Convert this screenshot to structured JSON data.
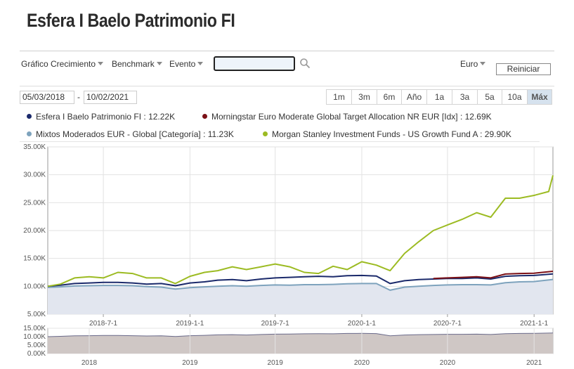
{
  "page": {
    "title": "Esfera I Baelo Patrimonio FI"
  },
  "toolbar": {
    "growth_chart": "Gráfico Crecimiento",
    "benchmark": "Benchmark",
    "event": "Evento",
    "search_value": "",
    "currency": "Euro",
    "reset": "Reiniciar"
  },
  "date_range": {
    "start": "05/03/2018",
    "separator": "-",
    "end": "10/02/2021"
  },
  "ranges": [
    "1m",
    "3m",
    "6m",
    "Año",
    "1a",
    "3a",
    "5a",
    "10a",
    "Máx"
  ],
  "active_range": "Máx",
  "legend": [
    {
      "label": "Esfera I Baelo Patrimonio FI : 12.22K",
      "color": "#1b2a6b"
    },
    {
      "label": "Morningstar Euro Moderate Global Target Allocation NR EUR [Idx] : 12.69K",
      "color": "#7b1016"
    },
    {
      "label": "Mixtos Moderados EUR - Global [Categoría] : 11.23K",
      "color": "#7ea3bd"
    },
    {
      "label": "Morgan Stanley Investment Funds - US Growth Fund A : 29.90K",
      "color": "#9cbb22"
    }
  ],
  "chart_data": {
    "type": "line",
    "x_start": "2018-03-05",
    "x_end": "2021-02-10",
    "ylim": [
      5000,
      35000
    ],
    "y_ticks": [
      5000,
      10000,
      15000,
      20000,
      25000,
      30000,
      35000
    ],
    "y_tick_labels": [
      "5.00K",
      "10.00K",
      "15.00K",
      "20.00K",
      "25.00K",
      "30.00K",
      "35.00K"
    ],
    "x_ticks": [
      "2018-07-01",
      "2019-01-01",
      "2019-07-01",
      "2020-01-01",
      "2020-07-01",
      "2021-01-01"
    ],
    "x_tick_labels": [
      "2018-7-1",
      "2019-1-1",
      "2019-7-1",
      "2020-1-1",
      "2020-7-1",
      "2021-1-1"
    ],
    "series": [
      {
        "name": "Mixtos Moderados EUR - Global [Categoría]",
        "color": "#7ea3bd",
        "x": [
          "2018-03-05",
          "2018-04-01",
          "2018-05-01",
          "2018-06-01",
          "2018-07-01",
          "2018-08-01",
          "2018-09-01",
          "2018-10-01",
          "2018-11-01",
          "2018-12-01",
          "2019-01-01",
          "2019-02-01",
          "2019-03-01",
          "2019-04-01",
          "2019-05-01",
          "2019-06-01",
          "2019-07-01",
          "2019-08-01",
          "2019-09-01",
          "2019-10-01",
          "2019-11-01",
          "2019-12-01",
          "2020-01-01",
          "2020-02-01",
          "2020-03-01",
          "2020-04-01",
          "2020-05-01",
          "2020-06-01",
          "2020-07-01",
          "2020-08-01",
          "2020-09-01",
          "2020-10-01",
          "2020-11-01",
          "2020-12-01",
          "2021-01-01",
          "2021-02-10"
        ],
        "values": [
          9800,
          9900,
          10050,
          10100,
          10150,
          10150,
          10100,
          9950,
          9850,
          9500,
          9750,
          9900,
          10000,
          10100,
          10000,
          10150,
          10250,
          10200,
          10300,
          10300,
          10350,
          10450,
          10500,
          10500,
          9300,
          9850,
          10000,
          10150,
          10250,
          10300,
          10300,
          10250,
          10650,
          10800,
          10850,
          11230
        ]
      },
      {
        "name": "Esfera I Baelo Patrimonio FI",
        "color": "#1b2a6b",
        "x": [
          "2018-03-05",
          "2018-04-01",
          "2018-05-01",
          "2018-06-01",
          "2018-07-01",
          "2018-08-01",
          "2018-09-01",
          "2018-10-01",
          "2018-11-01",
          "2018-12-01",
          "2019-01-01",
          "2019-02-01",
          "2019-03-01",
          "2019-04-01",
          "2019-05-01",
          "2019-06-01",
          "2019-07-01",
          "2019-08-01",
          "2019-09-01",
          "2019-10-01",
          "2019-11-01",
          "2019-12-01",
          "2020-01-01",
          "2020-02-01",
          "2020-03-01",
          "2020-04-01",
          "2020-05-01",
          "2020-06-01",
          "2020-07-01",
          "2020-08-01",
          "2020-09-01",
          "2020-10-01",
          "2020-11-01",
          "2020-12-01",
          "2021-01-01",
          "2021-02-10"
        ],
        "values": [
          10000,
          10200,
          10500,
          10600,
          10700,
          10700,
          10600,
          10400,
          10500,
          10100,
          10600,
          10800,
          11100,
          11200,
          11000,
          11300,
          11500,
          11600,
          11700,
          11800,
          11700,
          11900,
          11950,
          11850,
          10500,
          11000,
          11200,
          11300,
          11400,
          11400,
          11500,
          11300,
          11800,
          11900,
          11950,
          12220
        ]
      },
      {
        "name": "Morningstar Euro Moderate Global Target Allocation NR EUR [Idx]",
        "color": "#7b1016",
        "x": [
          "2020-06-01",
          "2020-07-01",
          "2020-08-01",
          "2020-09-01",
          "2020-10-01",
          "2020-11-01",
          "2020-12-01",
          "2021-01-01",
          "2021-02-10"
        ],
        "values": [
          11400,
          11500,
          11600,
          11700,
          11500,
          12200,
          12300,
          12350,
          12690
        ]
      },
      {
        "name": "Morgan Stanley Investment Funds - US Growth Fund A",
        "color": "#9cbb22",
        "x": [
          "2018-03-05",
          "2018-04-01",
          "2018-05-01",
          "2018-06-01",
          "2018-07-01",
          "2018-08-01",
          "2018-09-01",
          "2018-10-01",
          "2018-11-01",
          "2018-12-01",
          "2019-01-01",
          "2019-02-01",
          "2019-03-01",
          "2019-04-01",
          "2019-05-01",
          "2019-06-01",
          "2019-07-01",
          "2019-08-01",
          "2019-09-01",
          "2019-10-01",
          "2019-11-01",
          "2019-12-01",
          "2020-01-01",
          "2020-02-01",
          "2020-03-01",
          "2020-04-01",
          "2020-05-01",
          "2020-06-01",
          "2020-07-01",
          "2020-08-01",
          "2020-09-01",
          "2020-10-01",
          "2020-11-01",
          "2020-12-01",
          "2021-01-01",
          "2021-02-01",
          "2021-02-10"
        ],
        "values": [
          10000,
          10400,
          11500,
          11700,
          11500,
          12500,
          12300,
          11500,
          11500,
          10500,
          11800,
          12500,
          12800,
          13500,
          13000,
          13500,
          14000,
          13500,
          12500,
          12300,
          13600,
          13000,
          14400,
          13800,
          12800,
          15900,
          18000,
          20000,
          21000,
          22000,
          23200,
          22400,
          25800,
          25800,
          26300,
          27000,
          29900
        ]
      }
    ]
  },
  "navigator": {
    "y_tick_labels": [
      "0.00K",
      "5.00K",
      "10.00K",
      "15.00K"
    ],
    "x_tick_labels": [
      "2018",
      "2019",
      "2019",
      "2020",
      "2020",
      "2021"
    ]
  }
}
